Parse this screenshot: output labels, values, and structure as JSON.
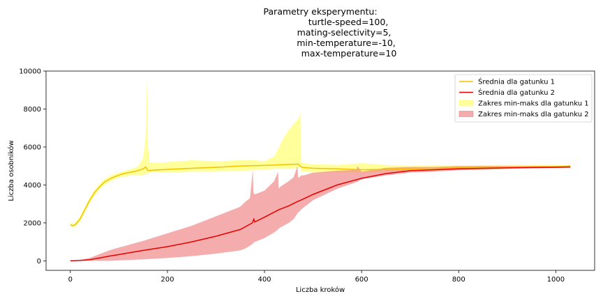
{
  "chart_data": {
    "type": "line",
    "title_lines": [
      "Parametry eksperymentu:",
      "turtle-speed=100,",
      "mating-selectivity=5,",
      "min-temperature=-10,",
      "max-temperature=10"
    ],
    "xlabel": "Liczba kroków",
    "ylabel": "Liczba osobników",
    "xlim": [
      -50,
      1080
    ],
    "ylim": [
      -500,
      10000
    ],
    "xticks": [
      0,
      200,
      400,
      600,
      800,
      1000
    ],
    "yticks": [
      0,
      2000,
      4000,
      6000,
      8000,
      10000
    ],
    "grid": false,
    "legend_position": "top-right",
    "legend": [
      {
        "label": "Średnia dla gatunku 1",
        "kind": "line",
        "color": "#f5c000"
      },
      {
        "label": "Średnia dla gatunku 2",
        "kind": "line",
        "color": "#e60000"
      },
      {
        "label": "Zakres min-maks dla gatunku 1",
        "kind": "fill",
        "color": "#ffff66"
      },
      {
        "label": "Zakres min-maks dla gatunku 2",
        "kind": "fill",
        "color": "#f08080"
      }
    ],
    "series": [
      {
        "name": "Średnia dla gatunku 1",
        "kind": "line",
        "color": "#f5c000",
        "x": [
          0,
          5,
          10,
          20,
          30,
          40,
          50,
          60,
          70,
          80,
          90,
          100,
          110,
          120,
          130,
          140,
          150,
          155,
          160,
          170,
          200,
          250,
          300,
          350,
          400,
          450,
          470,
          475,
          480,
          500,
          550,
          600,
          650,
          700,
          750,
          800,
          850,
          900,
          950,
          1000,
          1030
        ],
        "y": [
          1900,
          1850,
          1900,
          2200,
          2700,
          3200,
          3600,
          3900,
          4150,
          4300,
          4420,
          4520,
          4600,
          4650,
          4700,
          4760,
          4850,
          4950,
          4750,
          4780,
          4820,
          4880,
          4930,
          5000,
          5030,
          5080,
          5100,
          4950,
          4920,
          4880,
          4850,
          4800,
          4820,
          4850,
          4870,
          4900,
          4920,
          4950,
          4960,
          4970,
          5000
        ]
      },
      {
        "name": "Średnia dla gatunku 2",
        "kind": "line",
        "color": "#e60000",
        "x": [
          0,
          20,
          40,
          60,
          80,
          100,
          150,
          200,
          250,
          300,
          350,
          375,
          378,
          380,
          400,
          430,
          450,
          470,
          475,
          500,
          550,
          600,
          650,
          700,
          750,
          800,
          850,
          900,
          950,
          1000,
          1030
        ],
        "y": [
          0,
          20,
          60,
          150,
          250,
          330,
          550,
          750,
          1000,
          1300,
          1650,
          2000,
          2200,
          2050,
          2300,
          2700,
          2900,
          3150,
          3200,
          3500,
          4000,
          4350,
          4600,
          4750,
          4800,
          4850,
          4880,
          4900,
          4920,
          4930,
          4950
        ]
      },
      {
        "name": "Zakres min-maks dla gatunku 1",
        "kind": "fill",
        "color": "#ffff66",
        "x": [
          0,
          5,
          10,
          20,
          30,
          40,
          50,
          60,
          70,
          80,
          90,
          100,
          110,
          120,
          130,
          140,
          150,
          155,
          158,
          159,
          160,
          163,
          170,
          200,
          250,
          300,
          350,
          380,
          400,
          420,
          430,
          440,
          450,
          460,
          470,
          474,
          475,
          476,
          480,
          500,
          550,
          600,
          650,
          700,
          750,
          800,
          850,
          900,
          950,
          1000,
          1030
        ],
        "upper": [
          2050,
          1950,
          2000,
          2350,
          2850,
          3350,
          3750,
          4050,
          4300,
          4450,
          4580,
          4650,
          4720,
          4800,
          4880,
          5000,
          5400,
          6500,
          9500,
          8500,
          6000,
          5200,
          5150,
          5200,
          5300,
          5250,
          5300,
          5300,
          5250,
          5500,
          6000,
          6500,
          6900,
          7200,
          7500,
          7800,
          5300,
          5200,
          5150,
          5100,
          5050,
          5150,
          5050,
          5000,
          5050,
          5000,
          5050,
          5050,
          5050,
          5050,
          5050
        ],
        "lower": [
          1800,
          1750,
          1800,
          2050,
          2550,
          3050,
          3450,
          3750,
          4000,
          4150,
          4280,
          4380,
          4450,
          4480,
          4500,
          4500,
          4500,
          4600,
          4550,
          4500,
          4600,
          4650,
          4700,
          4650,
          4700,
          4700,
          4750,
          4780,
          4800,
          4850,
          4850,
          4850,
          4850,
          4850,
          4900,
          4950,
          4750,
          4700,
          4700,
          4680,
          4650,
          4650,
          4700,
          4750,
          4750,
          4800,
          4820,
          4850,
          4880,
          4900,
          4950
        ]
      },
      {
        "name": "Zakres min-maks dla gatunku 2",
        "kind": "fill",
        "color": "#f08080",
        "x": [
          0,
          20,
          40,
          60,
          80,
          100,
          150,
          200,
          250,
          300,
          350,
          360,
          370,
          376,
          377,
          380,
          400,
          420,
          428,
          429,
          432,
          450,
          460,
          468,
          469,
          472,
          475,
          480,
          500,
          550,
          590,
          591,
          600,
          650,
          700,
          750,
          800,
          850,
          900,
          950,
          1000,
          1030
        ],
        "upper": [
          0,
          50,
          150,
          350,
          550,
          700,
          1050,
          1450,
          1850,
          2350,
          2850,
          3100,
          3300,
          4800,
          3600,
          3500,
          3700,
          4200,
          4700,
          3800,
          3900,
          4200,
          4400,
          5000,
          4400,
          4400,
          4500,
          4500,
          4650,
          4750,
          4800,
          5000,
          4700,
          4900,
          4950,
          4950,
          5000,
          5000,
          5000,
          5000,
          5000,
          5000
        ],
        "lower": [
          0,
          0,
          0,
          0,
          0,
          20,
          80,
          150,
          250,
          380,
          550,
          650,
          800,
          900,
          950,
          1000,
          1200,
          1500,
          1650,
          1700,
          1750,
          2000,
          2200,
          2500,
          2550,
          2600,
          2700,
          2800,
          3200,
          3800,
          4150,
          4150,
          4300,
          4500,
          4650,
          4700,
          4780,
          4800,
          4850,
          4880,
          4900,
          4900
        ]
      }
    ]
  }
}
